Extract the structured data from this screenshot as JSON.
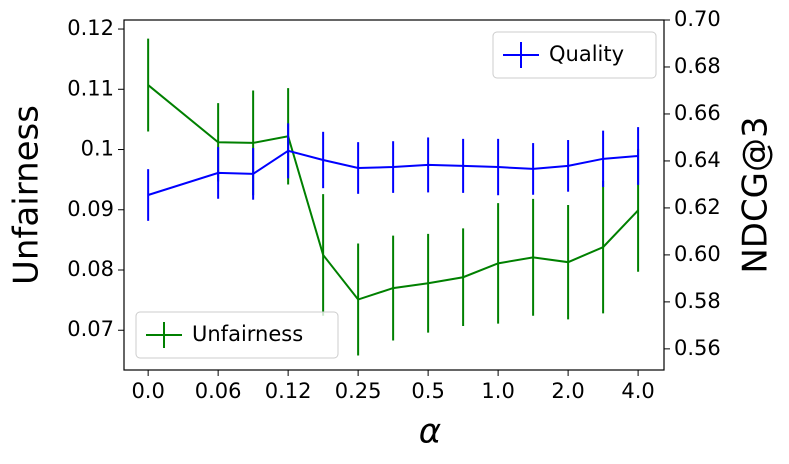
{
  "chart_data": {
    "type": "errorbar-line",
    "xlabel": "α",
    "ylabel": "Unfairness",
    "y2label": "NDCG@3",
    "x": [
      0,
      2,
      3,
      4,
      5,
      6,
      7,
      8,
      9,
      10,
      11,
      12,
      13,
      14
    ],
    "xlim": [
      -0.69,
      14.74
    ],
    "xticks": [
      {
        "value": 0,
        "label": "0.0"
      },
      {
        "value": 2,
        "label": "0.06"
      },
      {
        "value": 4,
        "label": "0.12"
      },
      {
        "value": 6,
        "label": "0.25"
      },
      {
        "value": 8,
        "label": "0.5"
      },
      {
        "value": 10,
        "label": "1.0"
      },
      {
        "value": 12,
        "label": "2.0"
      },
      {
        "value": 14,
        "label": "4.0"
      }
    ],
    "ylim": [
      0.0634,
      0.1215
    ],
    "yticks": [
      0.07,
      0.08,
      0.09,
      0.1,
      0.11,
      0.12
    ],
    "y2lim": [
      0.551,
      0.7
    ],
    "y2ticks": [
      0.56,
      0.58,
      {
        "value": 0.6,
        "label": "0.60"
      },
      0.62,
      0.64,
      0.66,
      0.68,
      {
        "value": 0.7,
        "label": "0.70"
      }
    ],
    "series": [
      {
        "name": "Unfairness",
        "color": "#008000",
        "legend": "lower left",
        "values": [
          0.1107,
          0.1012,
          0.1011,
          0.1022,
          0.0825,
          0.0751,
          0.077,
          0.0778,
          0.0788,
          0.0811,
          0.0821,
          0.0813,
          0.0838,
          0.0899
        ],
        "errors": [
          0.0077,
          0.0065,
          0.0087,
          0.008,
          0.0101,
          0.0093,
          0.0087,
          0.0082,
          0.0081,
          0.01,
          0.0097,
          0.0095,
          0.011,
          0.0102
        ]
      },
      {
        "name": "Quality",
        "color": "#0000ff",
        "axis": "y2",
        "legend": "upper right",
        "values": [
          0.6255,
          0.6349,
          0.6345,
          0.6443,
          0.6404,
          0.637,
          0.6374,
          0.6383,
          0.6379,
          0.6374,
          0.6366,
          0.6379,
          0.6409,
          0.6421
        ],
        "errors": [
          0.011,
          0.011,
          0.011,
          0.0117,
          0.012,
          0.011,
          0.011,
          0.0117,
          0.0115,
          0.012,
          0.011,
          0.011,
          0.012,
          0.0123
        ]
      }
    ]
  }
}
